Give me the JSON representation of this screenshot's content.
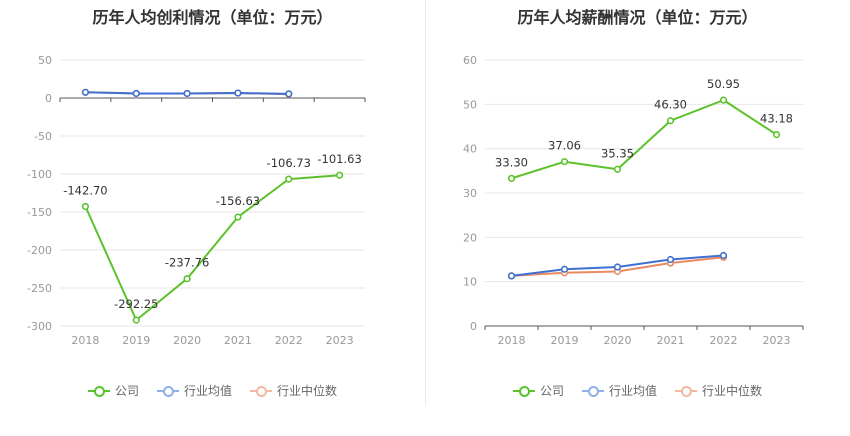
{
  "colors": {
    "company": "#5cc22c",
    "industry_avg": "#3f6fd0",
    "industry_median": "#ea8a63",
    "legend_avg": "#8fb0ea",
    "legend_median": "#f2b9a0"
  },
  "legend": {
    "company": "公司",
    "industry_avg": "行业均值",
    "industry_median": "行业中位数"
  },
  "chart_data": [
    {
      "type": "line",
      "title": "历年人均创利情况（单位：万元）",
      "categories": [
        "2018",
        "2019",
        "2020",
        "2021",
        "2022",
        "2023"
      ],
      "ylim": [
        -300,
        50
      ],
      "yticks": [
        50,
        0,
        -50,
        -100,
        -150,
        -200,
        -250,
        -300
      ],
      "grid": true,
      "legend_position": "bottom",
      "series": [
        {
          "name": "公司",
          "key": "company",
          "values": [
            -142.7,
            -292.25,
            -237.76,
            -156.63,
            -106.73,
            -101.63
          ],
          "labels": [
            "-142.70",
            "-292.25",
            "-237.76",
            "-156.63",
            "-106.73",
            "-101.63"
          ]
        },
        {
          "name": "行业均值",
          "key": "industry_avg",
          "values": [
            7.5,
            6,
            6,
            6.5,
            5.5,
            null
          ]
        },
        {
          "name": "行业中位数",
          "key": "industry_median",
          "values": [
            7.5,
            6,
            6,
            6.5,
            5,
            null
          ]
        }
      ]
    },
    {
      "type": "line",
      "title": "历年人均薪酬情况（单位：万元）",
      "categories": [
        "2018",
        "2019",
        "2020",
        "2021",
        "2022",
        "2023"
      ],
      "ylim": [
        0,
        60
      ],
      "yticks": [
        60,
        50,
        40,
        30,
        20,
        10,
        0
      ],
      "grid": true,
      "legend_position": "bottom",
      "series": [
        {
          "name": "公司",
          "key": "company",
          "values": [
            33.3,
            37.06,
            35.35,
            46.3,
            50.95,
            43.18
          ],
          "labels": [
            "33.30",
            "37.06",
            "35.35",
            "46.30",
            "50.95",
            "43.18"
          ]
        },
        {
          "name": "行业均值",
          "key": "industry_avg",
          "values": [
            11.3,
            12.8,
            13.3,
            15.0,
            15.9,
            null
          ]
        },
        {
          "name": "行业中位数",
          "key": "industry_median",
          "values": [
            11.3,
            12.0,
            12.3,
            14.2,
            15.5,
            null
          ]
        }
      ]
    }
  ]
}
